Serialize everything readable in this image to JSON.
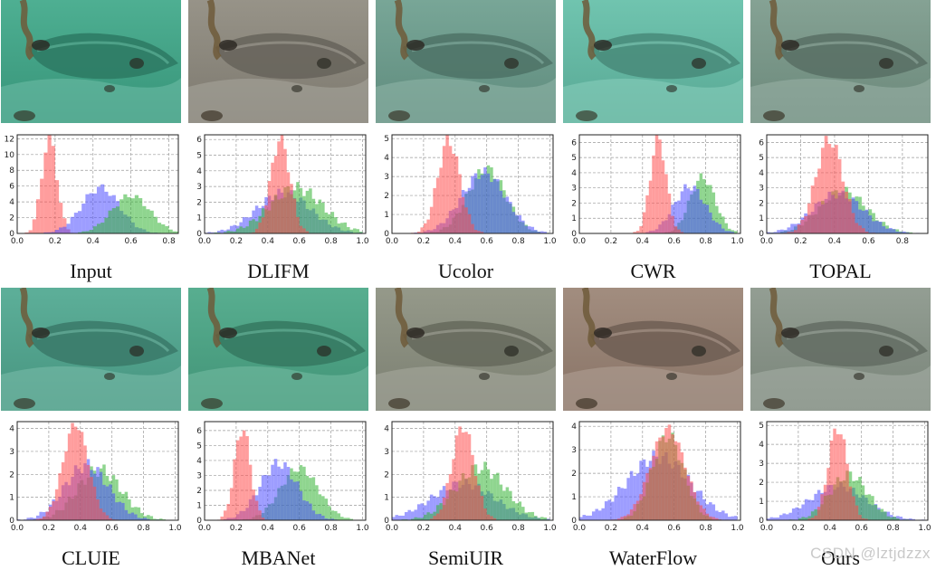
{
  "watermark": "CSDN @lztjdzzx",
  "colors": {
    "red": "#ff4d4d",
    "green": "#33b233",
    "blue": "#4d4dff"
  },
  "chart_data": [
    {
      "type": "histogram",
      "title": "Input",
      "image": "underwater-scene-input",
      "tint": "#3fa889",
      "xlim": [
        0,
        0.85
      ],
      "xticks": [
        "0.0",
        "0.2",
        "0.4",
        "0.6",
        "0.8"
      ],
      "ylim": [
        0,
        12.5
      ],
      "yticks": [
        "0",
        "2",
        "4",
        "6",
        "8",
        "10",
        "12"
      ],
      "series": [
        {
          "name": "red",
          "mean": 0.17,
          "sd": 0.04,
          "peak": 12.2,
          "nudge": 0.9
        },
        {
          "name": "blue",
          "mean": 0.44,
          "sd": 0.1,
          "peak": 5.8,
          "nudge": 0.5
        },
        {
          "name": "green",
          "mean": 0.6,
          "sd": 0.1,
          "peak": 4.8,
          "nudge": 0.4
        }
      ]
    },
    {
      "type": "histogram",
      "title": "DLIFM",
      "image": "underwater-scene-dlifm",
      "tint": "#8e8a7e",
      "xlim": [
        0,
        1.02
      ],
      "xticks": [
        "0.0",
        "0.2",
        "0.4",
        "0.6",
        "0.8",
        "1.0"
      ],
      "ylim": [
        0,
        6.3
      ],
      "yticks": [
        "0",
        "1",
        "2",
        "3",
        "4",
        "5",
        "6"
      ],
      "series": [
        {
          "name": "blue",
          "mean": 0.5,
          "sd": 0.17,
          "peak": 2.6,
          "nudge": 0.3
        },
        {
          "name": "green",
          "mean": 0.58,
          "sd": 0.17,
          "peak": 2.9,
          "nudge": 0.4
        },
        {
          "name": "red",
          "mean": 0.48,
          "sd": 0.06,
          "peak": 6.1,
          "nudge": 0.5
        }
      ]
    },
    {
      "type": "histogram",
      "title": "Ucolor",
      "image": "underwater-scene-ucolor",
      "tint": "#6c9e8e",
      "xlim": [
        0,
        1.02
      ],
      "xticks": [
        "0.0",
        "0.2",
        "0.4",
        "0.6",
        "0.8",
        "1.0"
      ],
      "ylim": [
        0,
        5.2
      ],
      "yticks": [
        "0",
        "1",
        "2",
        "3",
        "4",
        "5"
      ],
      "series": [
        {
          "name": "green",
          "mean": 0.6,
          "sd": 0.12,
          "peak": 3.4,
          "nudge": 0.3
        },
        {
          "name": "blue",
          "mean": 0.58,
          "sd": 0.14,
          "peak": 3.2,
          "nudge": 0.3
        },
        {
          "name": "red",
          "mean": 0.36,
          "sd": 0.07,
          "peak": 4.9,
          "nudge": 0.4
        }
      ]
    },
    {
      "type": "histogram",
      "title": "CWR",
      "image": "underwater-scene-cwr",
      "tint": "#64bfa8",
      "xlim": [
        0,
        1.02
      ],
      "xticks": [
        "0.0",
        "0.2",
        "0.4",
        "0.6",
        "0.8",
        "1.0"
      ],
      "ylim": [
        0,
        6.5
      ],
      "yticks": [
        "0",
        "1",
        "2",
        "3",
        "4",
        "5",
        "6"
      ],
      "series": [
        {
          "name": "green",
          "mean": 0.78,
          "sd": 0.08,
          "peak": 3.7,
          "nudge": 0.3
        },
        {
          "name": "blue",
          "mean": 0.7,
          "sd": 0.1,
          "peak": 3.1,
          "nudge": 0.3
        },
        {
          "name": "red",
          "mean": 0.5,
          "sd": 0.05,
          "peak": 6.3,
          "nudge": 0.5
        }
      ]
    },
    {
      "type": "histogram",
      "title": "TOPAL",
      "image": "underwater-scene-topal",
      "tint": "#7a9a8b",
      "xlim": [
        0,
        0.95
      ],
      "xticks": [
        "0.0",
        "0.2",
        "0.4",
        "0.6",
        "0.8"
      ],
      "ylim": [
        0,
        6.5
      ],
      "yticks": [
        "0",
        "1",
        "2",
        "3",
        "4",
        "5",
        "6"
      ],
      "series": [
        {
          "name": "green",
          "mean": 0.45,
          "sd": 0.14,
          "peak": 2.8,
          "nudge": 0.3
        },
        {
          "name": "blue",
          "mean": 0.42,
          "sd": 0.15,
          "peak": 2.6,
          "nudge": 0.3
        },
        {
          "name": "red",
          "mean": 0.37,
          "sd": 0.08,
          "peak": 6.2,
          "nudge": 0.5
        }
      ]
    },
    {
      "type": "histogram",
      "title": "CLUIE",
      "image": "underwater-scene-cluie",
      "tint": "#4fa890",
      "xlim": [
        0,
        1.02
      ],
      "xticks": [
        "0.0",
        "0.2",
        "0.4",
        "0.6",
        "0.8",
        "1.0"
      ],
      "ylim": [
        0,
        4.3
      ],
      "yticks": [
        "0",
        "1",
        "2",
        "3",
        "4"
      ],
      "series": [
        {
          "name": "green",
          "mean": 0.52,
          "sd": 0.14,
          "peak": 2.2,
          "nudge": 0.3
        },
        {
          "name": "blue",
          "mean": 0.44,
          "sd": 0.14,
          "peak": 2.4,
          "nudge": 0.3
        },
        {
          "name": "red",
          "mean": 0.37,
          "sd": 0.08,
          "peak": 4.2,
          "nudge": 0.2
        }
      ]
    },
    {
      "type": "histogram",
      "title": "MBANet",
      "image": "underwater-scene-mbanet",
      "tint": "#4aa786",
      "xlim": [
        0,
        1.02
      ],
      "xticks": [
        "0.0",
        "0.2",
        "0.4",
        "0.6",
        "0.8",
        "1.0"
      ],
      "ylim": [
        0,
        6.6
      ],
      "yticks": [
        "0",
        "1",
        "2",
        "3",
        "4",
        "5",
        "6"
      ],
      "series": [
        {
          "name": "green",
          "mean": 0.6,
          "sd": 0.12,
          "peak": 3.5,
          "nudge": 0.3
        },
        {
          "name": "blue",
          "mean": 0.47,
          "sd": 0.12,
          "peak": 3.8,
          "nudge": 0.4
        },
        {
          "name": "red",
          "mean": 0.24,
          "sd": 0.05,
          "peak": 6.2,
          "nudge": 0.5
        }
      ]
    },
    {
      "type": "histogram",
      "title": "SemiUIR",
      "image": "underwater-scene-semiuir",
      "tint": "#8c9080",
      "xlim": [
        0,
        1.02
      ],
      "xticks": [
        "0.0",
        "0.2",
        "0.4",
        "0.6",
        "0.8",
        "1.0"
      ],
      "ylim": [
        0,
        4.3
      ],
      "yticks": [
        "0",
        "1",
        "2",
        "3",
        "4"
      ],
      "series": [
        {
          "name": "blue",
          "mean": 0.45,
          "sd": 0.2,
          "peak": 1.6,
          "nudge": 0.2
        },
        {
          "name": "green",
          "mean": 0.56,
          "sd": 0.16,
          "peak": 2.3,
          "nudge": 0.3
        },
        {
          "name": "red",
          "mean": 0.45,
          "sd": 0.07,
          "peak": 4.1,
          "nudge": 0.3
        }
      ]
    },
    {
      "type": "histogram",
      "title": "WaterFlow",
      "image": "underwater-scene-waterflow",
      "tint": "#9a8374",
      "xlim": [
        0,
        1.02
      ],
      "xticks": [
        "0.0",
        "0.2",
        "0.4",
        "0.6",
        "0.8",
        "1.0"
      ],
      "ylim": [
        0,
        4.2
      ],
      "yticks": [
        "0",
        "1",
        "2",
        "3",
        "4"
      ],
      "series": [
        {
          "name": "blue",
          "mean": 0.5,
          "sd": 0.2,
          "peak": 2.7,
          "nudge": 0.3
        },
        {
          "name": "green",
          "mean": 0.56,
          "sd": 0.1,
          "peak": 3.6,
          "nudge": 0.3
        },
        {
          "name": "red",
          "mean": 0.56,
          "sd": 0.11,
          "peak": 3.9,
          "nudge": 0.2
        }
      ]
    },
    {
      "type": "histogram",
      "title": "Ours",
      "image": "underwater-scene-ours",
      "tint": "#8a968a",
      "xlim": [
        0,
        1.02
      ],
      "xticks": [
        "0.0",
        "0.2",
        "0.4",
        "0.6",
        "0.8",
        "1.0"
      ],
      "ylim": [
        0,
        5.2
      ],
      "yticks": [
        "0",
        "1",
        "2",
        "3",
        "4",
        "5"
      ],
      "series": [
        {
          "name": "blue",
          "mean": 0.45,
          "sd": 0.18,
          "peak": 1.8,
          "nudge": 0.2
        },
        {
          "name": "green",
          "mean": 0.52,
          "sd": 0.12,
          "peak": 2.4,
          "nudge": 0.3
        },
        {
          "name": "red",
          "mean": 0.45,
          "sd": 0.06,
          "peak": 4.9,
          "nudge": 0.4
        }
      ]
    }
  ]
}
